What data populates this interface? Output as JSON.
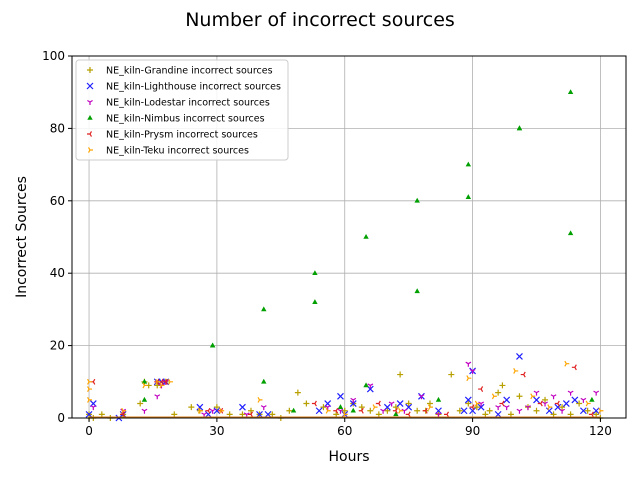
{
  "chart_data": {
    "type": "scatter",
    "title": "Number of incorrect sources",
    "xlabel": "Hours",
    "ylabel": "Incorrect Sources",
    "xlim": [
      -4,
      126
    ],
    "ylim": [
      0,
      100
    ],
    "xticks": [
      0,
      30,
      60,
      90,
      120
    ],
    "yticks": [
      0,
      20,
      40,
      60,
      80,
      100
    ],
    "grid": true,
    "legend_position": "top-left",
    "series": [
      {
        "name": "NE_kiln-Grandine incorrect sources",
        "color": "#b8a000",
        "marker": "plus",
        "points": [
          [
            0,
            1
          ],
          [
            0,
            0
          ],
          [
            1,
            0
          ],
          [
            3,
            1
          ],
          [
            5,
            0
          ],
          [
            8,
            1
          ],
          [
            12,
            4
          ],
          [
            13,
            10
          ],
          [
            14,
            9
          ],
          [
            16,
            9
          ],
          [
            18,
            10
          ],
          [
            20,
            1
          ],
          [
            24,
            3
          ],
          [
            26,
            2
          ],
          [
            30,
            3
          ],
          [
            33,
            1
          ],
          [
            36,
            1
          ],
          [
            38,
            2
          ],
          [
            40,
            1
          ],
          [
            43,
            1
          ],
          [
            45,
            0
          ],
          [
            47,
            2
          ],
          [
            49,
            7
          ],
          [
            51,
            4
          ],
          [
            55,
            3
          ],
          [
            58,
            1
          ],
          [
            60,
            2
          ],
          [
            62,
            4
          ],
          [
            64,
            3
          ],
          [
            66,
            2
          ],
          [
            68,
            1
          ],
          [
            70,
            2
          ],
          [
            72,
            3
          ],
          [
            73,
            12
          ],
          [
            75,
            4
          ],
          [
            77,
            2
          ],
          [
            79,
            2
          ],
          [
            80,
            4
          ],
          [
            82,
            1
          ],
          [
            85,
            12
          ],
          [
            87,
            2
          ],
          [
            89,
            4
          ],
          [
            91,
            3
          ],
          [
            93,
            1
          ],
          [
            94,
            2
          ],
          [
            96,
            7
          ],
          [
            97,
            9
          ],
          [
            99,
            1
          ],
          [
            101,
            6
          ],
          [
            103,
            3
          ],
          [
            105,
            2
          ],
          [
            107,
            5
          ],
          [
            109,
            1
          ],
          [
            111,
            3
          ],
          [
            113,
            1
          ],
          [
            115,
            4
          ],
          [
            117,
            2
          ],
          [
            119,
            1
          ],
          [
            120,
            0
          ]
        ]
      },
      {
        "name": "NE_kiln-Lighthouse incorrect sources",
        "color": "#1f1fff",
        "marker": "x",
        "points": [
          [
            0,
            1
          ],
          [
            1,
            4
          ],
          [
            7,
            0
          ],
          [
            8,
            1
          ],
          [
            16,
            10
          ],
          [
            17,
            10
          ],
          [
            18,
            10
          ],
          [
            26,
            3
          ],
          [
            28,
            1
          ],
          [
            30,
            2
          ],
          [
            36,
            3
          ],
          [
            40,
            1
          ],
          [
            42,
            1
          ],
          [
            54,
            2
          ],
          [
            56,
            4
          ],
          [
            59,
            6
          ],
          [
            60,
            1
          ],
          [
            62,
            4
          ],
          [
            66,
            8
          ],
          [
            70,
            3
          ],
          [
            73,
            4
          ],
          [
            75,
            3
          ],
          [
            78,
            6
          ],
          [
            82,
            2
          ],
          [
            88,
            2
          ],
          [
            89,
            5
          ],
          [
            90,
            13
          ],
          [
            90,
            2
          ],
          [
            92,
            3
          ],
          [
            96,
            1
          ],
          [
            98,
            5
          ],
          [
            101,
            17
          ],
          [
            105,
            5
          ],
          [
            108,
            2
          ],
          [
            110,
            3
          ],
          [
            112,
            4
          ],
          [
            114,
            5
          ],
          [
            116,
            2
          ],
          [
            119,
            2
          ]
        ]
      },
      {
        "name": "NE_kiln-Lodestar incorrect sources",
        "color": "#c000c0",
        "marker": "tri_down",
        "points": [
          [
            1,
            3
          ],
          [
            8,
            2
          ],
          [
            13,
            2
          ],
          [
            16,
            6
          ],
          [
            17,
            9
          ],
          [
            18,
            10
          ],
          [
            27,
            1
          ],
          [
            29,
            2
          ],
          [
            37,
            1
          ],
          [
            41,
            3
          ],
          [
            56,
            3
          ],
          [
            59,
            2
          ],
          [
            62,
            5
          ],
          [
            66,
            9
          ],
          [
            69,
            2
          ],
          [
            71,
            4
          ],
          [
            74,
            2
          ],
          [
            78,
            6
          ],
          [
            82,
            1
          ],
          [
            89,
            15
          ],
          [
            90,
            13
          ],
          [
            92,
            4
          ],
          [
            96,
            3
          ],
          [
            98,
            3
          ],
          [
            101,
            2
          ],
          [
            103,
            3
          ],
          [
            105,
            7
          ],
          [
            107,
            4
          ],
          [
            109,
            6
          ],
          [
            111,
            2
          ],
          [
            113,
            7
          ],
          [
            116,
            5
          ],
          [
            119,
            7
          ]
        ]
      },
      {
        "name": "NE_kiln-Nimbus incorrect sources",
        "color": "#00a000",
        "marker": "tri_up",
        "points": [
          [
            13,
            10
          ],
          [
            13,
            5
          ],
          [
            29,
            20
          ],
          [
            29,
            20
          ],
          [
            41,
            30
          ],
          [
            41,
            10
          ],
          [
            48,
            2
          ],
          [
            53,
            40
          ],
          [
            53,
            32
          ],
          [
            59,
            3
          ],
          [
            62,
            2
          ],
          [
            65,
            50
          ],
          [
            65,
            9
          ],
          [
            72,
            1
          ],
          [
            77,
            60
          ],
          [
            77,
            35
          ],
          [
            82,
            5
          ],
          [
            89,
            70
          ],
          [
            89,
            61
          ],
          [
            101,
            80
          ],
          [
            101,
            80
          ],
          [
            113,
            90
          ],
          [
            113,
            51
          ],
          [
            118,
            5
          ]
        ]
      },
      {
        "name": "NE_kiln-Prysm incorrect sources",
        "color": "#e02020",
        "marker": "tri_left",
        "points": [
          [
            1,
            10
          ],
          [
            8,
            1
          ],
          [
            16,
            10
          ],
          [
            17,
            10
          ],
          [
            18,
            10
          ],
          [
            28,
            2
          ],
          [
            31,
            2
          ],
          [
            38,
            1
          ],
          [
            53,
            4
          ],
          [
            58,
            2
          ],
          [
            64,
            2
          ],
          [
            68,
            4
          ],
          [
            72,
            2
          ],
          [
            75,
            1
          ],
          [
            79,
            2
          ],
          [
            84,
            1
          ],
          [
            90,
            3
          ],
          [
            92,
            8
          ],
          [
            97,
            4
          ],
          [
            102,
            12
          ],
          [
            106,
            4
          ],
          [
            110,
            4
          ],
          [
            114,
            14
          ],
          [
            118,
            1
          ]
        ]
      },
      {
        "name": "NE_kiln-Teku incorrect sources",
        "color": "#ffa500",
        "marker": "tri_right",
        "points": [
          [
            0,
            10
          ],
          [
            0,
            8
          ],
          [
            0,
            5
          ],
          [
            8,
            2
          ],
          [
            13,
            9
          ],
          [
            16,
            10
          ],
          [
            17,
            9
          ],
          [
            19,
            10
          ],
          [
            26,
            2
          ],
          [
            31,
            2
          ],
          [
            40,
            5
          ],
          [
            56,
            2
          ],
          [
            60,
            1
          ],
          [
            67,
            3
          ],
          [
            73,
            2
          ],
          [
            80,
            3
          ],
          [
            89,
            11
          ],
          [
            91,
            4
          ],
          [
            95,
            6
          ],
          [
            100,
            13
          ],
          [
            104,
            6
          ],
          [
            108,
            3
          ],
          [
            112,
            15
          ],
          [
            117,
            4
          ],
          [
            120,
            2
          ]
        ]
      }
    ]
  }
}
